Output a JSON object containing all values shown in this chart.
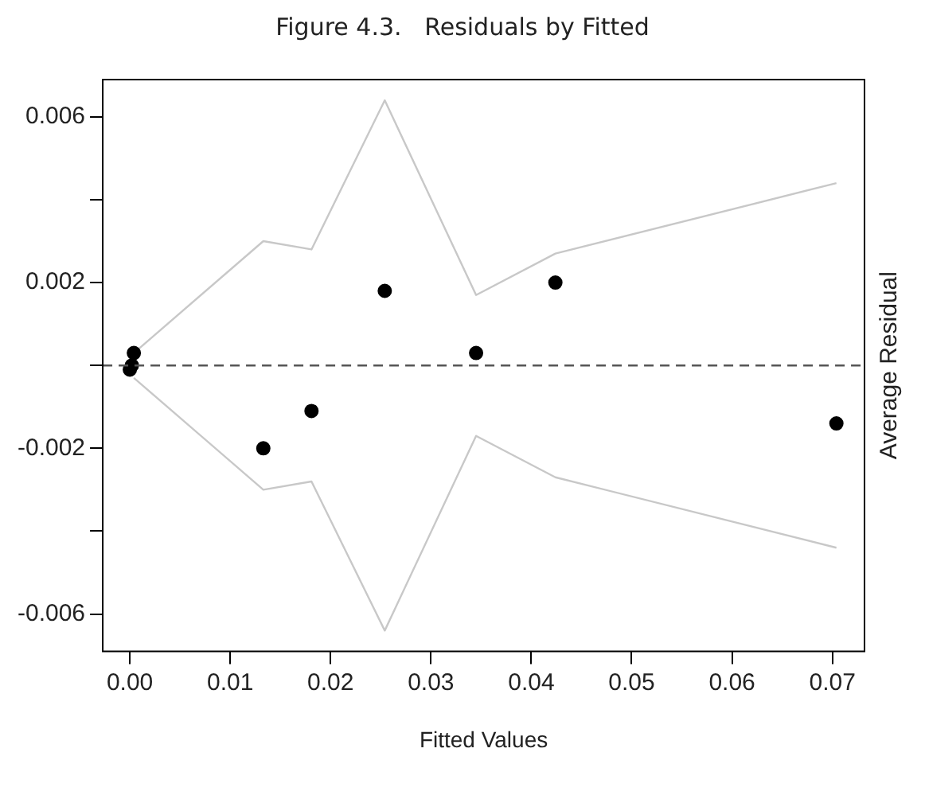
{
  "chart_data": {
    "type": "scatter",
    "title": "Figure 4.3.   Residuals by Fitted",
    "xlabel": "Fitted Values",
    "ylabel": "Average Residual",
    "xlim": [
      -0.0027,
      0.0732
    ],
    "ylim": [
      -0.0069,
      0.0069
    ],
    "xticks": [
      {
        "value": 0,
        "label": "0.00"
      },
      0.01,
      0.02,
      0.03,
      0.04,
      0.05,
      0.06,
      0.07
    ],
    "yticks": [
      -0.006,
      {
        "value": -0.004,
        "label": null
      },
      -0.002,
      {
        "value": 0,
        "label": null
      },
      0.002,
      {
        "value": 0.004,
        "label": null
      },
      0.006
    ],
    "grid": false,
    "legend": false,
    "ref_lines": [
      {
        "axis": "y",
        "value": 0,
        "line_style": "dashed",
        "color": "#555555"
      }
    ],
    "series": [
      {
        "type": "scatter",
        "marker": "circle",
        "color": "#000000",
        "x": [
          0.0,
          0.0002,
          0.0004,
          0.0133,
          0.0181,
          0.0254,
          0.0345,
          0.0424,
          0.0704
        ],
        "values": [
          -0.0001,
          0.0,
          0.0003,
          -0.002,
          -0.0011,
          0.0018,
          0.0003,
          0.002,
          -0.0014
        ]
      },
      {
        "type": "line",
        "marker": "none",
        "color": "#c8c8c8",
        "x": [
          0.0004,
          0.0133,
          0.0181,
          0.0254,
          0.0345,
          0.0424,
          0.0704
        ],
        "values": [
          0.0003,
          0.003,
          0.0028,
          0.0064,
          0.0017,
          0.0027,
          0.0044
        ]
      },
      {
        "type": "line",
        "marker": "none",
        "color": "#c8c8c8",
        "x": [
          0.0004,
          0.0133,
          0.0181,
          0.0254,
          0.0345,
          0.0424,
          0.0704
        ],
        "values": [
          -0.0003,
          -0.003,
          -0.0028,
          -0.0064,
          -0.0017,
          -0.0027,
          -0.0044
        ]
      }
    ]
  }
}
